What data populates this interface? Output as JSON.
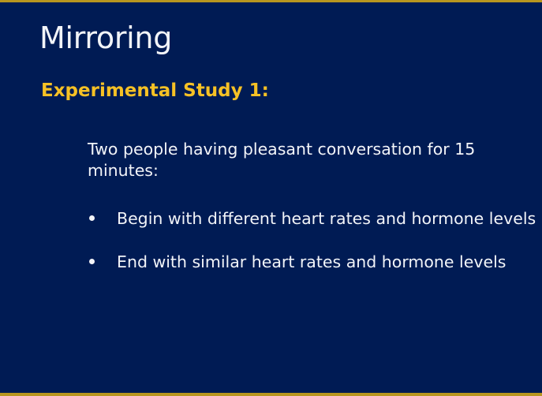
{
  "slide": {
    "title": "Mirroring",
    "subtitle": "Experimental Study 1:",
    "body": "Two people having pleasant conversation for 15 minutes:",
    "bullets": [
      "Begin with different heart rates and hormone levels",
      "End with similar heart rates and hormone levels"
    ]
  },
  "colors": {
    "background": "#001b54",
    "accent_border": "#b8961f",
    "subtitle": "#f6c125",
    "text": "#f2f4f8"
  }
}
